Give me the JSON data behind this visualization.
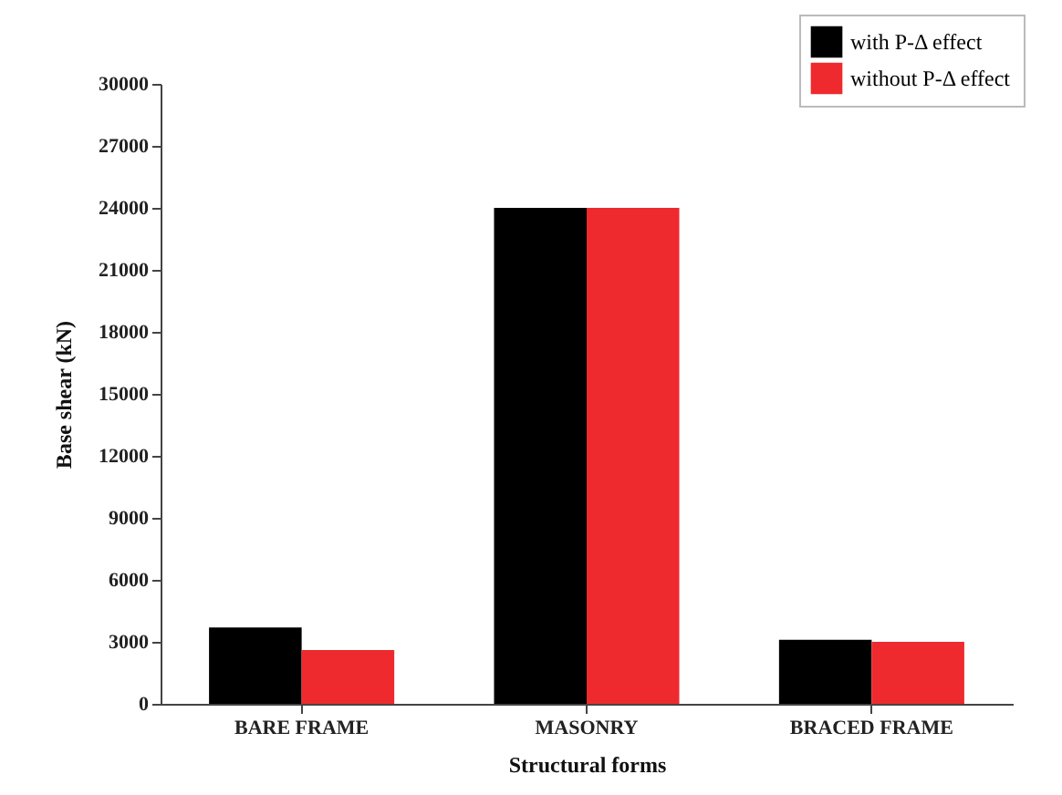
{
  "chart_data": {
    "type": "bar",
    "xlabel": "Structural forms",
    "ylabel": "Base shear (kN)",
    "categories": [
      "BARE FRAME",
      "MASONRY",
      "BRACED FRAME"
    ],
    "series": [
      {
        "name": "with P-Δ effect",
        "color": "#000000",
        "values": [
          3700,
          24000,
          3100
        ]
      },
      {
        "name": "without P-Δ effect",
        "color": "#ee2a2e",
        "values": [
          2600,
          24000,
          3000
        ]
      }
    ],
    "ylim": [
      0,
      30000
    ],
    "yticks": [
      0,
      3000,
      6000,
      9000,
      12000,
      15000,
      18000,
      21000,
      24000,
      27000,
      30000
    ],
    "grid": false,
    "legend": "top right"
  }
}
